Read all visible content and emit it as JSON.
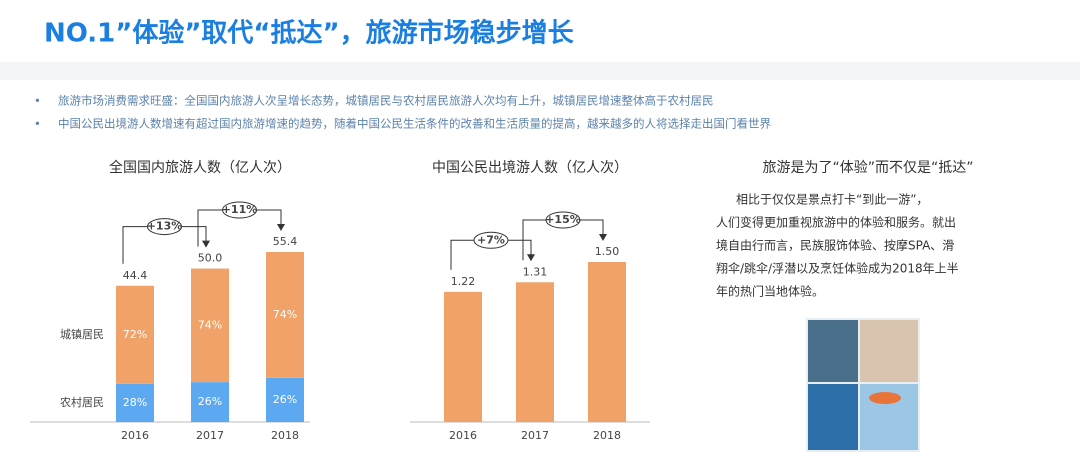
{
  "header": {
    "title": "NO.1”体验”取代“抵达”，旅游市场稳步增长"
  },
  "bullets": [
    "旅游市场消费需求旺盛：全国国内旅游人次呈增长态势，城镇居民与农村居民旅游人次均有上升，城镇居民增速整体高于农村居民",
    "中国公民出境游人数增速有超过国内旅游增速的趋势，随着中国公民生活条件的改善和生活质量的提高，越来越多的人将选择走出国门看世界"
  ],
  "chart_data": [
    {
      "type": "stacked_bar",
      "title": "全国国内旅游人数（亿人次）",
      "categories": [
        "2016",
        "2017",
        "2018"
      ],
      "values": [
        44.4,
        50.0,
        55.4
      ],
      "value_labels": [
        "44.4",
        "50.0",
        "55.4"
      ],
      "series": [
        {
          "name": "城镇居民",
          "color": "#f0a268",
          "values": [
            72,
            74,
            74
          ],
          "value_labels": [
            "72%",
            "74%",
            "74%"
          ]
        },
        {
          "name": "农村居民",
          "color": "#5ca9f2",
          "values": [
            28,
            26,
            26
          ],
          "value_labels": [
            "28%",
            "26%",
            "26%"
          ]
        }
      ],
      "annotations": [
        "+13%",
        "+11%"
      ]
    },
    {
      "type": "bar",
      "title": "中国公民出境游人数（亿人次）",
      "categories": [
        "2016",
        "2017",
        "2018"
      ],
      "values": [
        1.22,
        1.31,
        1.5
      ],
      "value_labels": [
        "1.22",
        "1.31",
        "1.50"
      ],
      "color": "#f0a268",
      "annotations": [
        "+7%",
        "+15%"
      ]
    }
  ],
  "panel": {
    "title": "旅游是为了“体验”而不仅是“抵达”",
    "lines": [
      "相比于仅仅是景点打卡“到此一游”，",
      "人们变得更加重视旅游中的体验和服务。就出",
      "境自由行而言，民族服饰体验、按摩SPA、滑",
      "翔伞/跳伞/浮潜以及烹饪体验成为2018年上半",
      "年的热门当地体验。"
    ]
  }
}
